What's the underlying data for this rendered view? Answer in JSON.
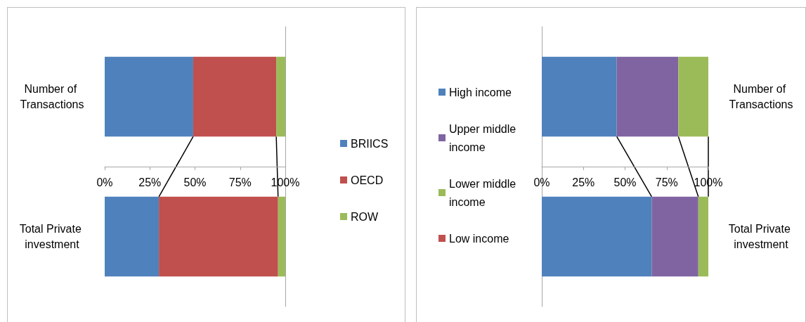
{
  "chart_data": [
    {
      "type": "bar",
      "orientation": "horizontal",
      "stacked": true,
      "categories": [
        "Number of Transactions",
        "Total Private investment"
      ],
      "series": [
        {
          "name": "BRIICS",
          "color": "#4f81bd",
          "values": [
            49,
            30
          ]
        },
        {
          "name": "OECD",
          "color": "#c0504d",
          "values": [
            46,
            66
          ]
        },
        {
          "name": "ROW",
          "color": "#9bbb59",
          "values": [
            5,
            4
          ]
        }
      ],
      "xlim": [
        0,
        100
      ],
      "xticks": [
        {
          "value": 0,
          "label": "0%"
        },
        {
          "value": 25,
          "label": "25%"
        },
        {
          "value": 50,
          "label": "50%"
        },
        {
          "value": 75,
          "label": "75%"
        },
        {
          "value": 100,
          "label": "100%"
        }
      ],
      "legend": "right"
    },
    {
      "type": "bar",
      "orientation": "horizontal",
      "stacked": true,
      "categories": [
        "Number of Transactions",
        "Total Private investment"
      ],
      "series": [
        {
          "name": "High income",
          "color": "#4f81bd",
          "values": [
            45,
            66
          ]
        },
        {
          "name": "Upper middle income",
          "color": "#8064a2",
          "values": [
            37,
            28
          ]
        },
        {
          "name": "Lower middle income",
          "color": "#9bbb59",
          "values": [
            18,
            6
          ]
        },
        {
          "name": "Low income",
          "color": "#c0504d",
          "values": [
            0,
            0
          ]
        }
      ],
      "xlim": [
        0,
        100
      ],
      "xticks": [
        {
          "value": 0,
          "label": "0%"
        },
        {
          "value": 25,
          "label": "25%"
        },
        {
          "value": 50,
          "label": "50%"
        },
        {
          "value": 75,
          "label": "75%"
        },
        {
          "value": 100,
          "label": "100%"
        }
      ],
      "legend": "left"
    }
  ]
}
